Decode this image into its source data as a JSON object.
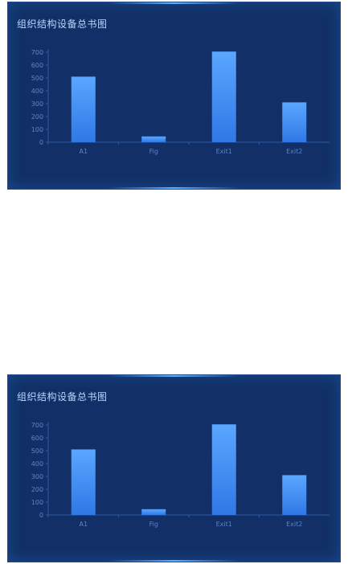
{
  "chart_data": [
    {
      "type": "bar",
      "title": "组织结构设备总书图",
      "categories": [
        "A1",
        "Fig",
        "Exit1",
        "Exit2"
      ],
      "values": [
        510,
        45,
        705,
        310
      ],
      "ylim": [
        0,
        700
      ],
      "yticks": [
        0,
        100,
        200,
        300,
        400,
        500,
        600,
        700
      ],
      "xlabel": "",
      "ylabel": "",
      "grid": false,
      "colors": {
        "bar_top": "#5aa6ff",
        "bar_bottom": "#2f78e6",
        "panel": "#123067"
      }
    },
    {
      "type": "bar",
      "title": "组织结构设备总书图",
      "categories": [
        "A1",
        "Fig",
        "Exit1",
        "Exit2"
      ],
      "values": [
        510,
        45,
        705,
        310
      ],
      "ylim": [
        0,
        700
      ],
      "yticks": [
        0,
        100,
        200,
        300,
        400,
        500,
        600,
        700
      ],
      "xlabel": "",
      "ylabel": "",
      "grid": false,
      "colors": {
        "bar_top": "#5aa6ff",
        "bar_bottom": "#2f78e6",
        "panel": "#123067"
      }
    }
  ]
}
